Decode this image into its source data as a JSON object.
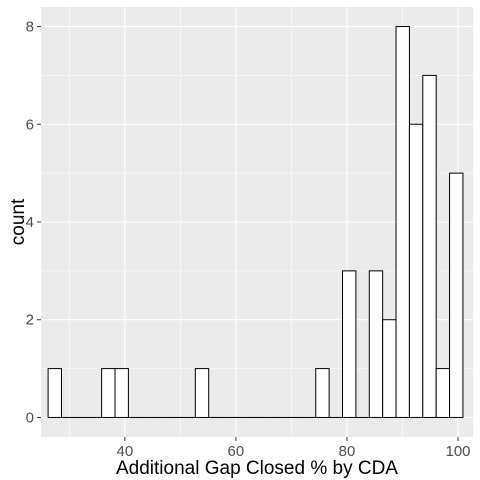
{
  "chart_data": {
    "type": "bar",
    "title": "",
    "xlabel": "Additional Gap Closed % by CDA",
    "ylabel": "count",
    "xlim": [
      24.9,
      102.7
    ],
    "ylim": [
      -0.4,
      8.4
    ],
    "x_ticks": [
      40,
      60,
      80,
      100
    ],
    "y_ticks": [
      0,
      2,
      4,
      6,
      8
    ],
    "bin_width": 2.41,
    "bins": [
      {
        "start": 26.18,
        "end": 28.59,
        "count": 1
      },
      {
        "start": 28.59,
        "end": 31.0,
        "count": 0
      },
      {
        "start": 31.0,
        "end": 33.41,
        "count": 0
      },
      {
        "start": 33.41,
        "end": 35.82,
        "count": 0
      },
      {
        "start": 35.82,
        "end": 38.23,
        "count": 1
      },
      {
        "start": 38.23,
        "end": 40.64,
        "count": 1
      },
      {
        "start": 40.64,
        "end": 43.05,
        "count": 0
      },
      {
        "start": 43.05,
        "end": 45.46,
        "count": 0
      },
      {
        "start": 45.46,
        "end": 47.87,
        "count": 0
      },
      {
        "start": 47.87,
        "end": 50.28,
        "count": 0
      },
      {
        "start": 50.28,
        "end": 52.69,
        "count": 0
      },
      {
        "start": 52.69,
        "end": 55.1,
        "count": 1
      },
      {
        "start": 55.1,
        "end": 57.51,
        "count": 0
      },
      {
        "start": 57.51,
        "end": 59.92,
        "count": 0
      },
      {
        "start": 59.92,
        "end": 62.33,
        "count": 0
      },
      {
        "start": 62.33,
        "end": 64.74,
        "count": 0
      },
      {
        "start": 64.74,
        "end": 67.15,
        "count": 0
      },
      {
        "start": 67.15,
        "end": 69.56,
        "count": 0
      },
      {
        "start": 69.56,
        "end": 71.97,
        "count": 0
      },
      {
        "start": 71.97,
        "end": 74.38,
        "count": 0
      },
      {
        "start": 74.38,
        "end": 76.79,
        "count": 1
      },
      {
        "start": 76.79,
        "end": 79.2,
        "count": 0
      },
      {
        "start": 79.2,
        "end": 81.61,
        "count": 3
      },
      {
        "start": 81.61,
        "end": 84.02,
        "count": 0
      },
      {
        "start": 84.02,
        "end": 86.43,
        "count": 3
      },
      {
        "start": 86.43,
        "end": 88.84,
        "count": 2
      },
      {
        "start": 88.84,
        "end": 91.25,
        "count": 8
      },
      {
        "start": 91.25,
        "end": 93.66,
        "count": 6
      },
      {
        "start": 93.66,
        "end": 96.07,
        "count": 7
      },
      {
        "start": 96.07,
        "end": 98.48,
        "count": 1
      },
      {
        "start": 98.48,
        "end": 100.89,
        "count": 5
      }
    ],
    "grid": true,
    "colors": {
      "panel": "#ebebeb",
      "grid": "#ffffff",
      "bar_fill": "#ffffff",
      "bar_stroke": "#000000",
      "tick_text": "#4d4d4d"
    }
  }
}
